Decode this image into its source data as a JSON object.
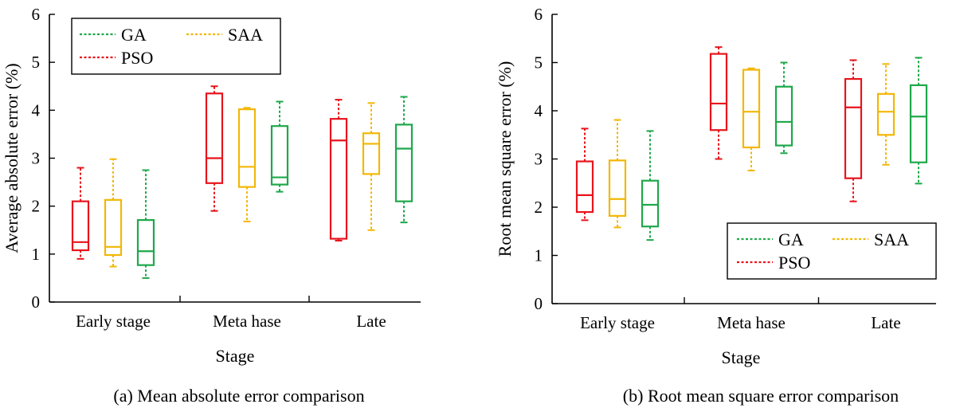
{
  "colors": {
    "PSO": "#e8141c",
    "SAA": "#f2b705",
    "GA": "#1ea84a",
    "axis": "#000000"
  },
  "chart_data": [
    {
      "type": "box",
      "caption": "(a) Mean absolute error comparison",
      "xlabel": "Stage",
      "ylabel": "Average absolute error (%)",
      "ylim": [
        0,
        6
      ],
      "yticks": [
        "0",
        "1",
        "2",
        "3",
        "4",
        "5",
        "6"
      ],
      "categories": [
        "Early stage",
        "Meta hase",
        "Late"
      ],
      "legend_position": "top-left",
      "legend": [
        "GA",
        "SAA",
        "PSO"
      ],
      "series": [
        {
          "name": "PSO",
          "color_key": "PSO",
          "boxes": [
            {
              "min": 0.9,
              "q1": 1.08,
              "median": 1.25,
              "q3": 2.1,
              "max": 2.8
            },
            {
              "min": 1.9,
              "q1": 2.48,
              "median": 3.0,
              "q3": 4.35,
              "max": 4.5
            },
            {
              "min": 1.28,
              "q1": 1.32,
              "median": 3.37,
              "q3": 3.82,
              "max": 4.22
            }
          ]
        },
        {
          "name": "SAA",
          "color_key": "SAA",
          "boxes": [
            {
              "min": 0.74,
              "q1": 0.98,
              "median": 1.15,
              "q3": 2.13,
              "max": 2.98
            },
            {
              "min": 1.68,
              "q1": 2.4,
              "median": 2.82,
              "q3": 4.02,
              "max": 4.05
            },
            {
              "min": 1.5,
              "q1": 2.67,
              "median": 3.3,
              "q3": 3.52,
              "max": 4.15
            }
          ]
        },
        {
          "name": "GA",
          "color_key": "GA",
          "boxes": [
            {
              "min": 0.5,
              "q1": 0.77,
              "median": 1.06,
              "q3": 1.71,
              "max": 2.75
            },
            {
              "min": 2.3,
              "q1": 2.45,
              "median": 2.6,
              "q3": 3.67,
              "max": 4.18
            },
            {
              "min": 1.66,
              "q1": 2.1,
              "median": 3.2,
              "q3": 3.7,
              "max": 4.28
            }
          ]
        }
      ]
    },
    {
      "type": "box",
      "caption": "(b) Root mean square error comparison",
      "xlabel": "Stage",
      "ylabel": "Root mean square error (%)",
      "ylim": [
        0,
        6
      ],
      "yticks": [
        "0",
        "1",
        "2",
        "3",
        "4",
        "5",
        "6"
      ],
      "categories": [
        "Early stage",
        "Meta hase",
        "Late"
      ],
      "legend_position": "bottom-right",
      "legend": [
        "GA",
        "SAA",
        "PSO"
      ],
      "series": [
        {
          "name": "PSO",
          "color_key": "PSO",
          "boxes": [
            {
              "min": 1.73,
              "q1": 1.9,
              "median": 2.25,
              "q3": 2.95,
              "max": 3.63
            },
            {
              "min": 3.0,
              "q1": 3.6,
              "median": 4.15,
              "q3": 5.18,
              "max": 5.32
            },
            {
              "min": 2.12,
              "q1": 2.6,
              "median": 4.07,
              "q3": 4.66,
              "max": 5.05
            }
          ]
        },
        {
          "name": "SAA",
          "color_key": "SAA",
          "boxes": [
            {
              "min": 1.58,
              "q1": 1.82,
              "median": 2.17,
              "q3": 2.97,
              "max": 3.81
            },
            {
              "min": 2.76,
              "q1": 3.24,
              "median": 3.98,
              "q3": 4.85,
              "max": 4.88
            },
            {
              "min": 2.88,
              "q1": 3.5,
              "median": 3.98,
              "q3": 4.35,
              "max": 4.97
            }
          ]
        },
        {
          "name": "GA",
          "color_key": "GA",
          "boxes": [
            {
              "min": 1.32,
              "q1": 1.6,
              "median": 2.05,
              "q3": 2.55,
              "max": 3.58
            },
            {
              "min": 3.12,
              "q1": 3.28,
              "median": 3.77,
              "q3": 4.5,
              "max": 5.0
            },
            {
              "min": 2.49,
              "q1": 2.93,
              "median": 3.88,
              "q3": 4.53,
              "max": 5.1
            }
          ]
        }
      ]
    }
  ]
}
